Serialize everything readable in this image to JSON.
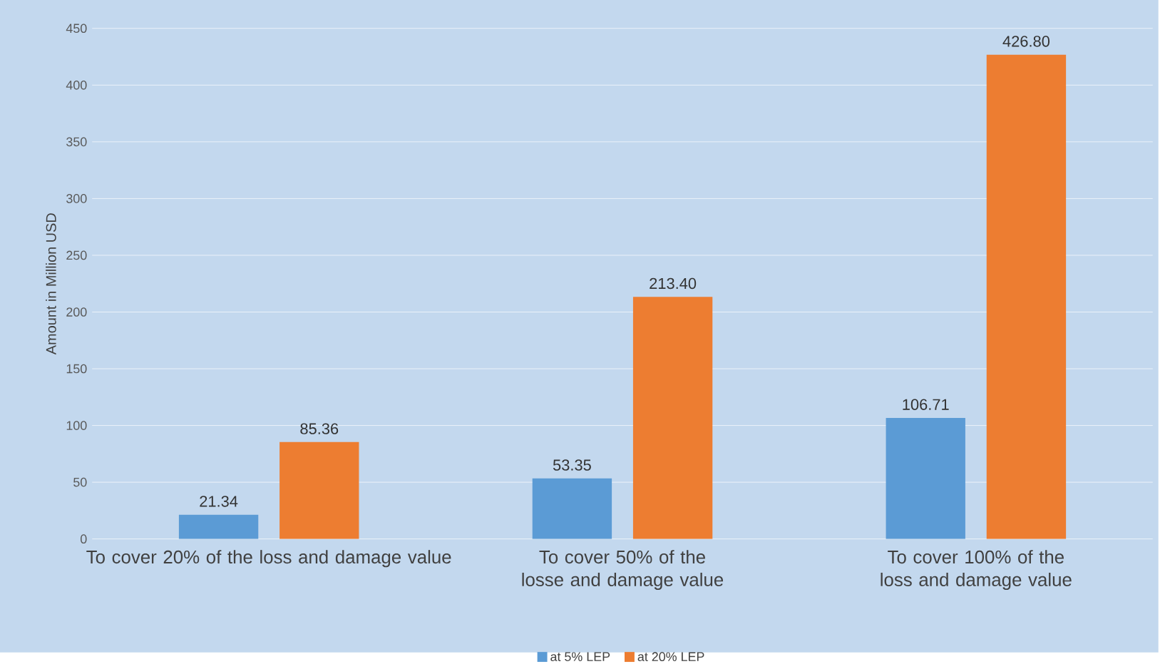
{
  "chart_data": {
    "type": "bar",
    "ylabel": "Amount in Million USD",
    "categories": [
      "To cover 20% of the loss and damage value",
      "To cover 50% of the losse and damage value",
      "To cover 100% of the loss and damage value"
    ],
    "series": [
      {
        "name": "at 5% LEP",
        "color": "#5b9bd5",
        "values": [
          21.34,
          53.35,
          106.71
        ],
        "value_labels": [
          "21.34",
          "53.35",
          "106.71"
        ]
      },
      {
        "name": "at 20% LEP",
        "color": "#ed7d31",
        "values": [
          85.36,
          213.4,
          426.8
        ],
        "value_labels": [
          "85.36",
          "213.40",
          "426.80"
        ]
      }
    ],
    "ylim": [
      0,
      450
    ],
    "yticks": [
      0,
      50,
      100,
      150,
      200,
      250,
      300,
      350,
      400,
      450
    ],
    "grid": "y",
    "legend": "bottom"
  }
}
